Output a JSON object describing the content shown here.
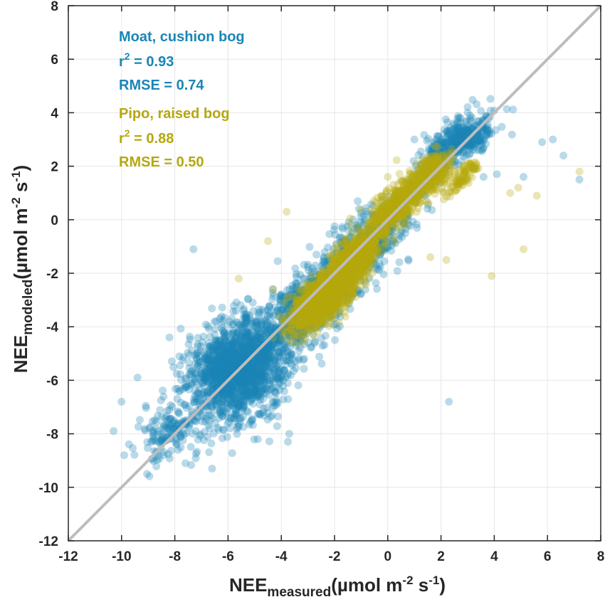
{
  "chart_data": {
    "type": "scatter",
    "title": "",
    "xlabel": {
      "main": "NEE",
      "subscript": "measured",
      "unit_open": "(µmol m",
      "unit_exp1": "-2",
      "unit_mid": " s",
      "unit_exp2": "-1",
      "unit_close": ")"
    },
    "ylabel": {
      "main": "NEE",
      "subscript": "modeled",
      "unit_open": "(µmol m",
      "unit_exp1": "-2",
      "unit_mid": " s",
      "unit_exp2": "-1",
      "unit_close": ")"
    },
    "xlim": [
      -12,
      8
    ],
    "ylim": [
      -12,
      8
    ],
    "xticks": [
      "-12",
      "-10",
      "-8",
      "-6",
      "-4",
      "-2",
      "0",
      "2",
      "4",
      "6",
      "8"
    ],
    "yticks": [
      "-12",
      "-10",
      "-8",
      "-6",
      "-4",
      "-2",
      "0",
      "2",
      "4",
      "6",
      "8"
    ],
    "grid": true,
    "one_to_one_line": {
      "from": [
        -12,
        -12
      ],
      "to": [
        8,
        8
      ],
      "color": "#bdbdbd"
    },
    "annotations": [
      {
        "site": "Moat, cushion bog",
        "r2_prefix": "r",
        "r2_exp": "2",
        "r2_value": " = 0.93",
        "rmse": "RMSE = 0.74",
        "color": "#1a86b5"
      },
      {
        "site": "Pipo, raised bog",
        "r2_prefix": "r",
        "r2_exp": "2",
        "r2_value": " = 0.88",
        "rmse": "RMSE = 0.50",
        "color": "#b5a80e"
      }
    ],
    "series": [
      {
        "color": "#1a86b5",
        "opacity": 0.3,
        "clusters": [
          {
            "cx": -5.6,
            "cy": -5.6,
            "sa": 1.05,
            "sb": 0.8,
            "n": 1700
          },
          {
            "cx": -3.0,
            "cy": -3.2,
            "sa": 1.0,
            "sb": 0.55,
            "n": 650
          },
          {
            "cx": -0.8,
            "cy": -0.9,
            "sa": 1.1,
            "sb": 0.5,
            "n": 500
          },
          {
            "cx": 2.3,
            "cy": 2.7,
            "sa": 0.8,
            "sb": 0.3,
            "n": 350
          },
          {
            "cx": 3.3,
            "cy": 3.1,
            "sa": 0.4,
            "sb": 0.3,
            "n": 120
          },
          {
            "cx": -8.2,
            "cy": -8.0,
            "sa": 0.6,
            "sb": 0.5,
            "n": 140
          }
        ],
        "outliers": [
          [
            -7.3,
            -1.1
          ],
          [
            2.3,
            -6.8
          ],
          [
            -3.7,
            -8.0
          ],
          [
            -10.3,
            -7.9
          ],
          [
            -9.9,
            -8.8
          ],
          [
            -9.4,
            -5.9
          ],
          [
            -8.2,
            -4.4
          ],
          [
            -10.0,
            -6.8
          ],
          [
            -7.6,
            -9.1
          ],
          [
            -6.6,
            -9.3
          ],
          [
            6.2,
            3.0
          ],
          [
            6.6,
            2.4
          ],
          [
            7.2,
            1.5
          ],
          [
            5.8,
            2.9
          ],
          [
            5.1,
            1.6
          ],
          [
            4.1,
            1.7
          ],
          [
            3.6,
            1.6
          ],
          [
            -3.9,
            -3.2
          ],
          [
            -3.2,
            -3.6
          ],
          [
            1.0,
            3.0
          ]
        ]
      },
      {
        "color": "#b5a80e",
        "opacity": 0.3,
        "clusters": [
          {
            "cx": -2.4,
            "cy": -2.9,
            "sa": 0.8,
            "sb": 0.32,
            "n": 1300
          },
          {
            "cx": -1.2,
            "cy": -1.4,
            "sa": 0.6,
            "sb": 0.3,
            "n": 650
          },
          {
            "cx": 0.3,
            "cy": 0.5,
            "sa": 0.65,
            "sb": 0.28,
            "n": 550
          },
          {
            "cx": 1.6,
            "cy": 1.7,
            "sa": 0.45,
            "sb": 0.25,
            "n": 350
          },
          {
            "cx": 2.8,
            "cy": 1.6,
            "sa": 0.4,
            "sb": 0.15,
            "n": 90
          }
        ],
        "outliers": [
          [
            -3.8,
            0.3
          ],
          [
            -4.5,
            -0.8
          ],
          [
            3.9,
            -2.1
          ],
          [
            5.1,
            -1.1
          ],
          [
            2.2,
            -1.5
          ],
          [
            7.2,
            1.8
          ],
          [
            5.6,
            0.9
          ],
          [
            4.6,
            1.0
          ],
          [
            4.9,
            1.2
          ],
          [
            -5.6,
            -2.2
          ],
          [
            -4.3,
            -2.6
          ],
          [
            1.6,
            -1.4
          ],
          [
            0.0,
            1.6
          ]
        ]
      }
    ]
  }
}
